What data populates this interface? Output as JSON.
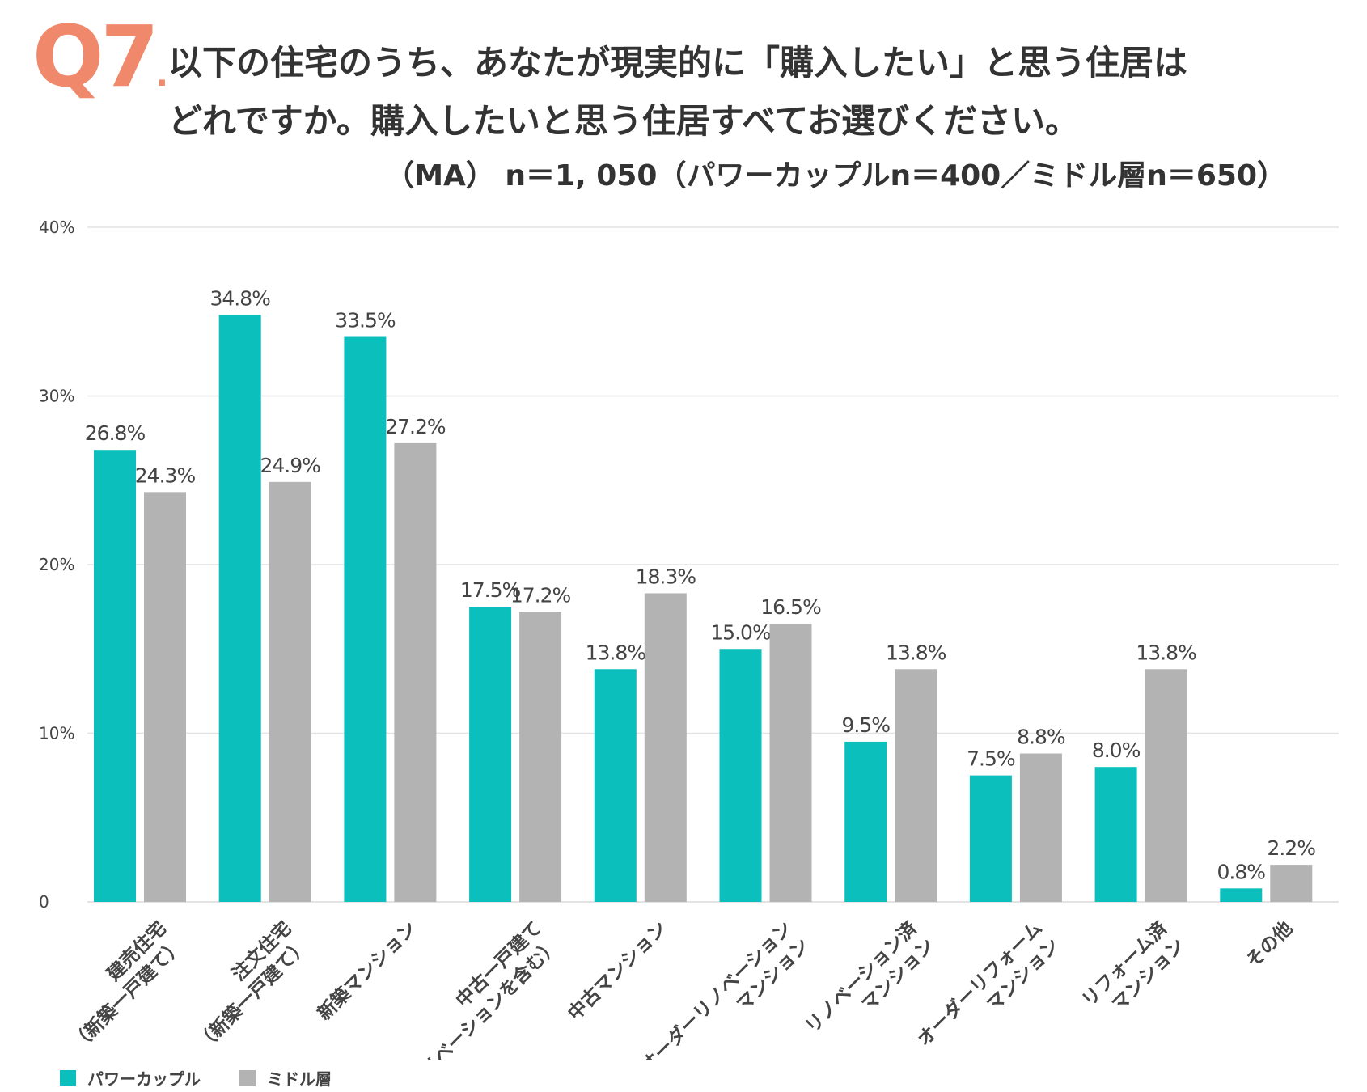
{
  "header": {
    "q_number": "Q7",
    "q_dot": ".",
    "question_line1": "以下の住宅のうち、あなたが現実的に「購入したい」と思う住居は",
    "question_line2": "どれですか。購入したいと思う住居すべてお選びください。",
    "sample_note": "（MA） n＝1, 050（パワーカップルn＝400／ミドル層n＝650）"
  },
  "colors": {
    "accent": "#f0896b",
    "power_couple": "#0abfbc",
    "middle": "#b3b3b3",
    "grid": "#e3e3e3",
    "text": "#333333"
  },
  "chart_data": {
    "type": "bar",
    "title": "",
    "xlabel": "",
    "ylabel": "",
    "ylim": [
      0,
      40
    ],
    "y_ticks": [
      {
        "value": 0,
        "label": "0"
      },
      {
        "value": 10,
        "label": "10%"
      },
      {
        "value": 20,
        "label": "20%"
      },
      {
        "value": 30,
        "label": "30%"
      },
      {
        "value": 40,
        "label": "40%"
      }
    ],
    "grid": true,
    "legend_position": "bottom-left",
    "categories": [
      [
        "建売住宅",
        "（新築一戸建て）"
      ],
      [
        "注文住宅",
        "（新築一戸建て）"
      ],
      [
        "新築マンション"
      ],
      [
        "中古一戸建て",
        "（リノベーションを含む）"
      ],
      [
        "中古マンション"
      ],
      [
        "オーダーリノベーション",
        "マンション"
      ],
      [
        "リノベーション済",
        "マンション"
      ],
      [
        "オーダーリフォーム",
        "マンション"
      ],
      [
        "リフォーム済",
        "マンション"
      ],
      [
        "その他"
      ]
    ],
    "series": [
      {
        "name": "パワーカップル",
        "values": [
          26.8,
          34.8,
          33.5,
          17.5,
          13.8,
          15.0,
          9.5,
          7.5,
          8.0,
          0.8
        ],
        "labels": [
          "26.8%",
          "34.8%",
          "33.5%",
          "17.5%",
          "13.8%",
          "15.0%",
          "9.5%",
          "7.5%",
          "8.0%",
          "0.8%"
        ]
      },
      {
        "name": "ミドル層",
        "values": [
          24.3,
          24.9,
          27.2,
          17.2,
          18.3,
          16.5,
          13.8,
          8.8,
          13.8,
          2.2
        ],
        "labels": [
          "24.3%",
          "24.9%",
          "27.2%",
          "17.2%",
          "18.3%",
          "16.5%",
          "13.8%",
          "8.8%",
          "13.8%",
          "2.2%"
        ]
      }
    ]
  }
}
